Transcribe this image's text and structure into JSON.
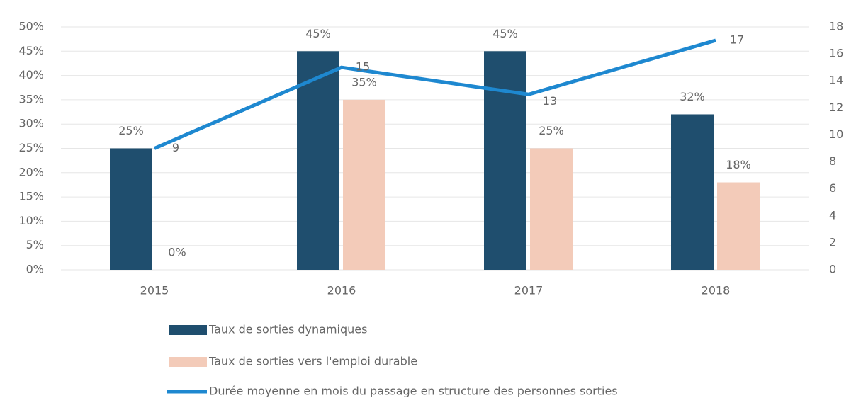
{
  "chart_data": {
    "type": "bar_line",
    "categories": [
      "2015",
      "2016",
      "2017",
      "2018"
    ],
    "series": [
      {
        "name": "Taux de sorties dynamiques",
        "color": "#1f4e6e",
        "values": [
          25,
          45,
          45,
          32
        ],
        "value_labels": [
          "25%",
          "45%",
          "45%",
          "32%"
        ]
      },
      {
        "name": "Taux de sorties vers l'emploi durable",
        "color": "#f3cbb9",
        "values": [
          0,
          35,
          25,
          18
        ],
        "value_labels": [
          "0%",
          "35%",
          "25%",
          "18%"
        ]
      },
      {
        "name": "Durée moyenne en mois du passage en structure des personnes sorties",
        "color": "#1e88d0",
        "axis": "y2",
        "values": [
          9,
          15,
          13,
          17
        ]
      }
    ],
    "ylim": [
      0,
      50
    ],
    "yticks": [
      {
        "value": 0,
        "label": "0%"
      },
      {
        "value": 5,
        "label": "5%"
      },
      {
        "value": 10,
        "label": "10%"
      },
      {
        "value": 15,
        "label": "15%"
      },
      {
        "value": 20,
        "label": "20%"
      },
      {
        "value": 25,
        "label": "25%"
      },
      {
        "value": 30,
        "label": "30%"
      },
      {
        "value": 35,
        "label": "35%"
      },
      {
        "value": 40,
        "label": "40%"
      },
      {
        "value": 45,
        "label": "45%"
      },
      {
        "value": 50,
        "label": "50%"
      }
    ],
    "y2lim": [
      0,
      18
    ],
    "y2ticks": [
      0,
      2,
      4,
      6,
      8,
      10,
      12,
      14,
      16,
      18
    ],
    "grid": true
  }
}
